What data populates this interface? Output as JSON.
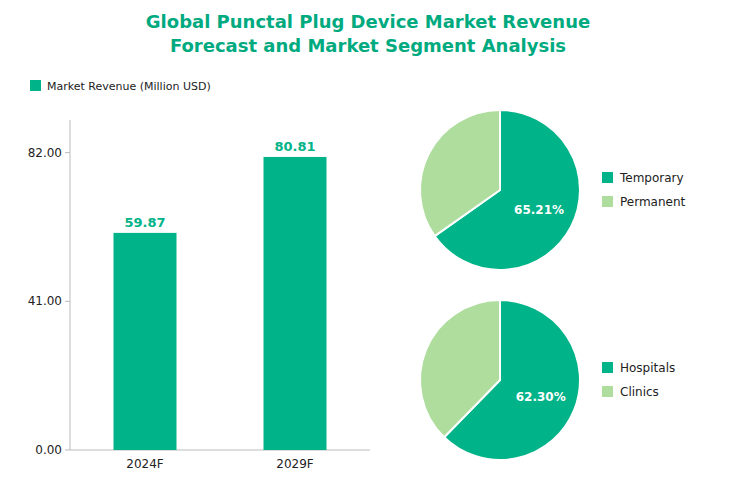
{
  "chart_data": [
    {
      "type": "bar",
      "title": "Global Punctal Plug Device Market Revenue\nForecast and Market Segment Analysis",
      "categories": [
        "2024F",
        "2029F"
      ],
      "series": [
        {
          "name": "Market Revenue (Million USD)",
          "color": "#00B388",
          "values": [
            59.87,
            80.81
          ]
        }
      ],
      "ylim": [
        0,
        91
      ],
      "yticks": [
        {
          "value": 0.0,
          "label": "0.00"
        },
        {
          "value": 41.0,
          "label": "41.00"
        },
        {
          "value": 82.0,
          "label": "82.00"
        }
      ],
      "data_labels": true,
      "grid": false,
      "legend": "upper left"
    },
    {
      "type": "pie",
      "categories": [
        "Temporary",
        "Permanent"
      ],
      "values": [
        65.21,
        34.79
      ],
      "value_labels": [
        "65.21%",
        null
      ],
      "colors": [
        "#00B388",
        "#AEDD9E"
      ],
      "legend": "right"
    },
    {
      "type": "pie",
      "categories": [
        "Hospitals",
        "Clinics"
      ],
      "values": [
        62.3,
        37.7
      ],
      "value_labels": [
        "62.30%",
        null
      ],
      "colors": [
        "#00B388",
        "#AEDD9E"
      ],
      "legend": "right"
    }
  ]
}
